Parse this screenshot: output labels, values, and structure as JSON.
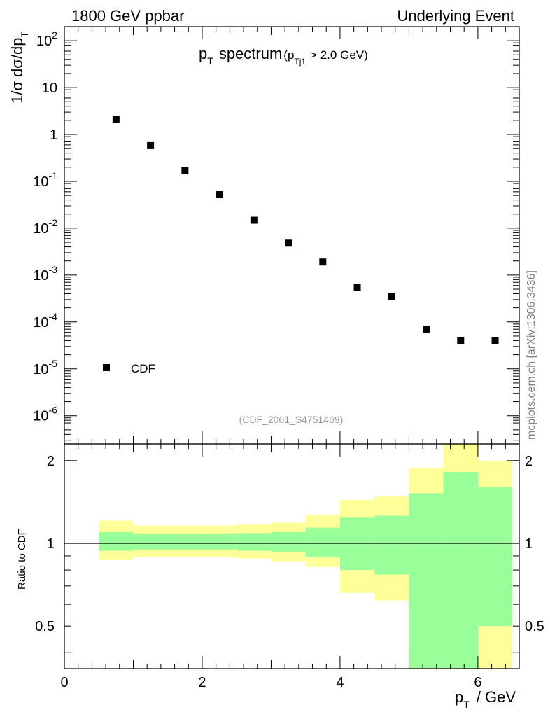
{
  "header": {
    "left_label": "1800 GeV ppbar",
    "right_label": "Underlying Event"
  },
  "title": {
    "main_p": "p",
    "main_sub": "T",
    "main_rest": "spectrum",
    "cond_open": "(p",
    "cond_sub": "Tj1",
    "cond_rest": "> 2.0 GeV)"
  },
  "analysis_tag": "(CDF_2001_S4751469)",
  "watermark": "mcplots.cern.ch [arXiv:1306.3436]",
  "legend": {
    "label": "CDF"
  },
  "axes": {
    "ylabel_top": "1/σ dσ/dp",
    "ylabel_top_sub": "T",
    "ylabel_ratio": "Ratio to CDF",
    "xlabel_p": "p",
    "xlabel_sub": "T",
    "xlabel_rest": "/ GeV"
  },
  "chart_data": {
    "type": "scatter",
    "yscale": "log",
    "xlim": [
      0,
      6.6
    ],
    "ylim": [
      2.5e-07,
      200
    ],
    "x": [
      0.75,
      1.25,
      1.75,
      2.25,
      2.75,
      3.25,
      3.75,
      4.25,
      4.75,
      5.25,
      5.75,
      6.25
    ],
    "series": [
      {
        "name": "CDF",
        "values": [
          2.1,
          0.58,
          0.17,
          0.052,
          0.0148,
          0.0048,
          0.0019,
          0.00055,
          0.00035,
          7e-05,
          4e-05,
          4e-05
        ]
      }
    ],
    "x_ticks": [
      "0",
      "2",
      "4",
      "6"
    ],
    "y_ticks": [
      "10^-6",
      "10^-5",
      "10^-4",
      "10^-3",
      "10^-2",
      "10^-1",
      "1",
      "10",
      "10^2"
    ],
    "ratio": {
      "ylim": [
        0.35,
        2.3
      ],
      "y_ticks": [
        "0.5",
        "1",
        "2"
      ],
      "bin_edges": [
        0.5,
        1.0,
        1.5,
        2.0,
        2.5,
        3.0,
        3.5,
        4.0,
        4.5,
        5.0,
        5.5,
        6.0,
        6.5
      ],
      "green_band": [
        [
          0.94,
          1.1
        ],
        [
          0.95,
          1.08
        ],
        [
          0.95,
          1.08
        ],
        [
          0.95,
          1.08
        ],
        [
          0.94,
          1.09
        ],
        [
          0.93,
          1.1
        ],
        [
          0.89,
          1.14
        ],
        [
          0.8,
          1.24
        ],
        [
          0.77,
          1.26
        ],
        [
          0.35,
          1.52
        ],
        [
          0.35,
          1.82
        ],
        [
          0.5,
          1.6
        ]
      ],
      "yellow_band": [
        [
          0.87,
          1.21
        ],
        [
          0.89,
          1.16
        ],
        [
          0.89,
          1.16
        ],
        [
          0.89,
          1.16
        ],
        [
          0.88,
          1.17
        ],
        [
          0.86,
          1.19
        ],
        [
          0.82,
          1.27
        ],
        [
          0.66,
          1.44
        ],
        [
          0.62,
          1.48
        ],
        [
          0.35,
          1.88
        ],
        [
          0.35,
          2.3
        ],
        [
          0.35,
          2.0
        ]
      ],
      "reference": 1.0
    },
    "colors": {
      "green": "#99ff99",
      "yellow": "#ffff99",
      "marker": "#000000"
    }
  }
}
